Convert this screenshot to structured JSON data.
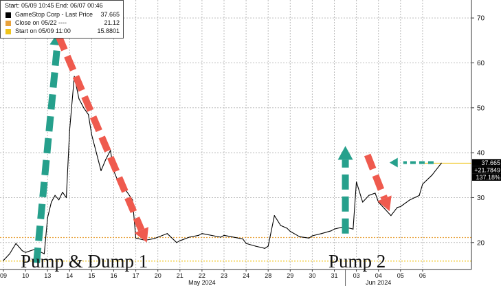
{
  "chart_data": {
    "type": "line",
    "title": "",
    "xlabel": "",
    "ylabel": "",
    "ylim": [
      14,
      74
    ],
    "yticks": [
      20,
      30,
      40,
      50,
      60,
      70
    ],
    "grid": true,
    "x_ticks": [
      {
        "date": "2024-05-09",
        "label": "09"
      },
      {
        "date": "2024-05-10",
        "label": "10"
      },
      {
        "date": "2024-05-13",
        "label": "13"
      },
      {
        "date": "2024-05-14",
        "label": "14"
      },
      {
        "date": "2024-05-15",
        "label": "15"
      },
      {
        "date": "2024-05-16",
        "label": "16"
      },
      {
        "date": "2024-05-17",
        "label": "17"
      },
      {
        "date": "2024-05-20",
        "label": "20"
      },
      {
        "date": "2024-05-21",
        "label": "21"
      },
      {
        "date": "2024-05-22",
        "label": "22"
      },
      {
        "date": "2024-05-23",
        "label": "23"
      },
      {
        "date": "2024-05-24",
        "label": "24"
      },
      {
        "date": "2024-05-28",
        "label": "28"
      },
      {
        "date": "2024-05-29",
        "label": "29"
      },
      {
        "date": "2024-05-30",
        "label": "30"
      },
      {
        "date": "2024-05-31",
        "label": "31"
      },
      {
        "date": "2024-06-03",
        "label": "03"
      },
      {
        "date": "2024-06-04",
        "label": "04"
      },
      {
        "date": "2024-06-05",
        "label": "05"
      },
      {
        "date": "2024-06-06",
        "label": "06"
      }
    ],
    "month_labels": [
      {
        "date": "2024-05-22",
        "label": "May 2024"
      },
      {
        "date": "2024-06-04",
        "label": "Jun 2024"
      }
    ],
    "series": [
      {
        "name": "GameStop Corp - Last Price",
        "color": "#000000",
        "points": [
          [
            "2024-05-09",
            16.0
          ],
          [
            "2024-05-09",
            17.5
          ],
          [
            "2024-05-09",
            19.8
          ],
          [
            "2024-05-09",
            18.2
          ],
          [
            "2024-05-10",
            17.8
          ],
          [
            "2024-05-10",
            18.5
          ],
          [
            "2024-05-10",
            17.5
          ],
          [
            "2024-05-13",
            25.5
          ],
          [
            "2024-05-13",
            29.0
          ],
          [
            "2024-05-13",
            30.5
          ],
          [
            "2024-05-13",
            29.5
          ],
          [
            "2024-05-13",
            31.2
          ],
          [
            "2024-05-13",
            30.0
          ],
          [
            "2024-05-14",
            45.0
          ],
          [
            "2024-05-14",
            57.0
          ],
          [
            "2024-05-14",
            52.0
          ],
          [
            "2024-05-14",
            50.0
          ],
          [
            "2024-05-14",
            48.5
          ],
          [
            "2024-05-15",
            44.0
          ],
          [
            "2024-05-15",
            40.0
          ],
          [
            "2024-05-15",
            36.0
          ],
          [
            "2024-05-15",
            38.5
          ],
          [
            "2024-05-15",
            40.5
          ],
          [
            "2024-05-16",
            36.0
          ],
          [
            "2024-05-16",
            32.5
          ],
          [
            "2024-05-16",
            31.5
          ],
          [
            "2024-05-16",
            29.5
          ],
          [
            "2024-05-17",
            21.0
          ],
          [
            "2024-05-17",
            20.5
          ],
          [
            "2024-05-17",
            20.9
          ],
          [
            "2024-05-20",
            21.2
          ],
          [
            "2024-05-20",
            22.0
          ],
          [
            "2024-05-20",
            20.0
          ],
          [
            "2024-05-21",
            20.4
          ],
          [
            "2024-05-21",
            21.2
          ],
          [
            "2024-05-21",
            21.6
          ],
          [
            "2024-05-22",
            22.0
          ],
          [
            "2024-05-22",
            21.2
          ],
          [
            "2024-05-23",
            21.6
          ],
          [
            "2024-05-23",
            20.8
          ],
          [
            "2024-05-24",
            19.8
          ],
          [
            "2024-05-24",
            19.2
          ],
          [
            "2024-05-24",
            18.7
          ],
          [
            "2024-05-28",
            19.2
          ],
          [
            "2024-05-28",
            26.0
          ],
          [
            "2024-05-28",
            23.8
          ],
          [
            "2024-05-28",
            23.2
          ],
          [
            "2024-05-29",
            22.5
          ],
          [
            "2024-05-29",
            21.3
          ],
          [
            "2024-05-29",
            21.0
          ],
          [
            "2024-05-30",
            21.5
          ],
          [
            "2024-05-30",
            22.0
          ],
          [
            "2024-05-30",
            22.6
          ],
          [
            "2024-05-31",
            23.0
          ],
          [
            "2024-05-31",
            23.5
          ],
          [
            "2024-05-31",
            23.0
          ],
          [
            "2024-06-03",
            33.5
          ],
          [
            "2024-06-03",
            29.0
          ],
          [
            "2024-06-03",
            30.5
          ],
          [
            "2024-06-03",
            31.0
          ],
          [
            "2024-06-04",
            29.0
          ],
          [
            "2024-06-04",
            27.5
          ],
          [
            "2024-06-04",
            26.0
          ],
          [
            "2024-06-04",
            27.8
          ],
          [
            "2024-06-05",
            28.0
          ],
          [
            "2024-06-05",
            29.5
          ],
          [
            "2024-06-05",
            30.5
          ],
          [
            "2024-06-06",
            33.0
          ],
          [
            "2024-06-06",
            35.0
          ],
          [
            "2024-06-06",
            37.665
          ]
        ]
      }
    ],
    "reference_lines": [
      {
        "name": "Close on 05/22",
        "value": 21.12,
        "color": "#e8a23c"
      },
      {
        "name": "Start on 05/09 11:00",
        "value": 15.8801,
        "color": "#f0c419"
      }
    ],
    "last_value_line": {
      "value": 37.665,
      "color": "#f0c419"
    },
    "right_labels": [
      "37.665",
      "+21.7849",
      "137.18%"
    ],
    "legend": {
      "placement": "top-left",
      "header": "Start: 05/09 10:45 End: 06/07 00:46",
      "rows": [
        {
          "label": "GameStop Corp - Last Price",
          "value": "37.665",
          "color": "#000000"
        },
        {
          "label": "Close on 05/22  ----",
          "value": "21.12",
          "color": "#e8a23c"
        },
        {
          "label": "Start on 05/09 11:00",
          "value": "15.8801",
          "color": "#f0c419"
        }
      ]
    },
    "annotations": {
      "text": [
        "Pump & Dump 1",
        "Pump 2"
      ],
      "arrows": [
        {
          "kind": "up",
          "color": "#26a08c",
          "from": [
            "2024-05-10",
            15.5
          ],
          "to": [
            "2024-05-13",
            67.0
          ]
        },
        {
          "kind": "down",
          "color": "#ef5a4e",
          "from": [
            "2024-05-13",
            66.0
          ],
          "to": [
            "2024-05-17",
            20.0
          ]
        },
        {
          "kind": "up",
          "color": "#26a08c",
          "from": [
            "2024-05-31",
            22.0
          ],
          "to": [
            "2024-05-31",
            41.5
          ]
        },
        {
          "kind": "down",
          "color": "#ef5a4e",
          "from": [
            "2024-06-03",
            39.5
          ],
          "to": [
            "2024-06-04",
            27.0
          ]
        },
        {
          "kind": "left",
          "color": "#26a08c",
          "from": [
            "2024-06-06",
            37.8
          ],
          "to": [
            "2024-06-04",
            37.8
          ]
        }
      ]
    }
  }
}
